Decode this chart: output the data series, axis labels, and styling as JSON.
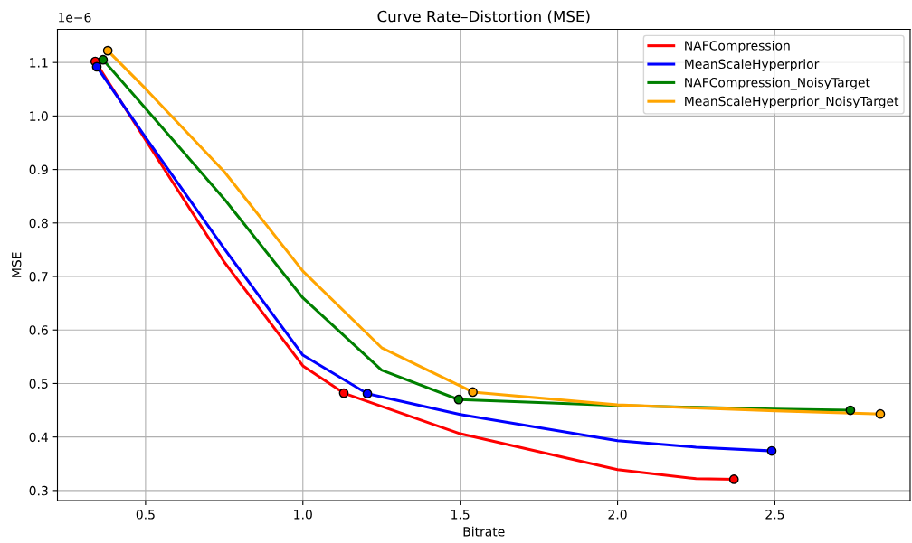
{
  "chart_data": {
    "type": "line",
    "title": "Curve Rate–Distortion (MSE)",
    "xlabel": "Bitrate",
    "ylabel": "MSE",
    "annotations": [
      "1e−6"
    ],
    "series": [
      {
        "name": "NAFCompression",
        "color": "#ff0000",
        "x": [
          0.34,
          0.5,
          0.75,
          1.0,
          1.13,
          1.5,
          2.0,
          2.25,
          2.37
        ],
        "values": [
          1.102,
          0.955,
          0.727,
          0.533,
          0.482,
          0.406,
          0.339,
          0.322,
          0.321
        ]
      },
      {
        "name": "MeanScaleHyperprior",
        "color": "#0000ff",
        "x": [
          0.345,
          0.5,
          0.75,
          1.0,
          1.205,
          1.5,
          2.0,
          2.25,
          2.49
        ],
        "values": [
          1.092,
          0.96,
          0.752,
          0.553,
          0.481,
          0.442,
          0.393,
          0.381,
          0.374
        ]
      },
      {
        "name": "NAFCompression_NoisyTarget",
        "color": "#008000",
        "x": [
          0.365,
          0.5,
          0.75,
          1.0,
          1.25,
          1.495,
          2.0,
          2.5,
          2.74
        ],
        "values": [
          1.105,
          1.014,
          0.845,
          0.66,
          0.525,
          0.47,
          0.459,
          0.452,
          0.45
        ]
      },
      {
        "name": "MeanScaleHyperprior_NoisyTarget",
        "color": "#ffa500",
        "x": [
          0.38,
          0.5,
          0.75,
          1.0,
          1.25,
          1.54,
          2.0,
          2.5,
          2.835
        ],
        "values": [
          1.122,
          1.051,
          0.896,
          0.71,
          0.567,
          0.484,
          0.46,
          0.449,
          0.443
        ]
      },
      {
        "type": "scatter",
        "marker": "circle",
        "color": "#ff0000",
        "x": [
          0.34,
          1.13,
          2.37
        ],
        "values": [
          1.102,
          0.482,
          0.321
        ]
      },
      {
        "type": "scatter",
        "marker": "circle",
        "color": "#0000ff",
        "x": [
          0.345,
          1.205,
          2.49
        ],
        "values": [
          1.092,
          0.481,
          0.374
        ]
      },
      {
        "type": "scatter",
        "marker": "circle",
        "color": "#008000",
        "x": [
          0.365,
          1.495,
          2.74
        ],
        "values": [
          1.105,
          0.47,
          0.45
        ]
      },
      {
        "type": "scatter",
        "marker": "circle",
        "color": "#ffa500",
        "x": [
          0.38,
          1.54,
          2.835
        ],
        "values": [
          1.122,
          0.484,
          0.443
        ]
      }
    ],
    "xlim": [
      0.22,
      2.93
    ],
    "xticks": [
      {
        "value": 0.5,
        "label": "0.5"
      },
      {
        "value": 1.0,
        "label": "1.0"
      },
      {
        "value": 1.5,
        "label": "1.5"
      },
      {
        "value": 2.0,
        "label": "2.0"
      },
      {
        "value": 2.5,
        "label": "2.5"
      }
    ],
    "ylim": [
      0.281,
      1.162
    ],
    "yticks": [
      0.3,
      0.4,
      0.5,
      0.6,
      0.7,
      0.8,
      0.9,
      {
        "value": 1.0,
        "label": "1.0"
      },
      1.1
    ],
    "grid": true,
    "legend": "top right",
    "marker": "none",
    "line_style": "solid"
  }
}
